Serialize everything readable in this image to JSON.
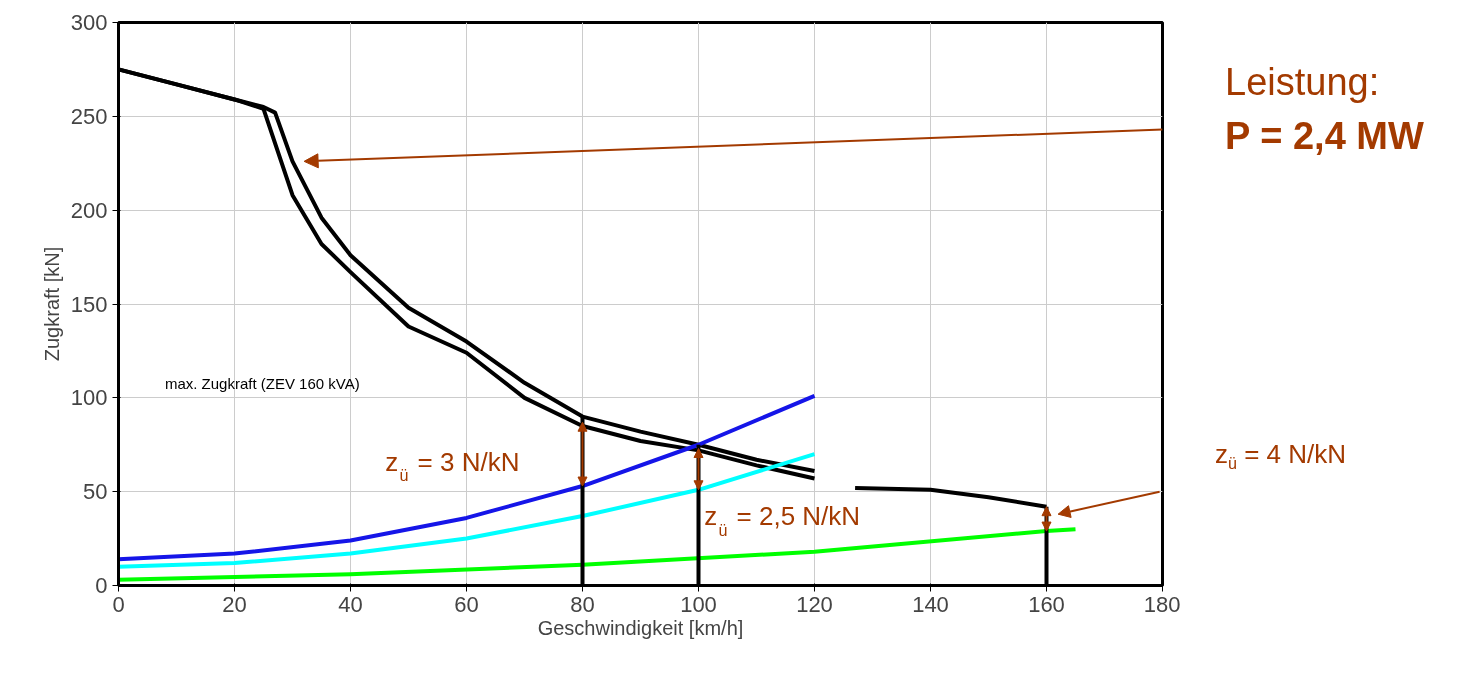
{
  "chart_data": {
    "type": "line",
    "xlabel": "Geschwindigkeit [km/h]",
    "ylabel": "Zugkraft [kN]",
    "xlim": [
      0,
      180
    ],
    "ylim": [
      0,
      300
    ],
    "xticks": [
      0,
      20,
      40,
      60,
      80,
      100,
      120,
      140,
      160,
      180
    ],
    "yticks": [
      0,
      50,
      100,
      150,
      200,
      250,
      300
    ],
    "grid": true,
    "series": [
      {
        "color": "#000000",
        "x": [
          0,
          10,
          20,
          25,
          27,
          30,
          35,
          40,
          50,
          60,
          70,
          80,
          90,
          100,
          110,
          120,
          121,
          127,
          140,
          150,
          160
        ],
        "values": [
          275,
          267,
          259,
          255,
          252,
          226,
          196,
          176,
          148,
          130,
          108,
          90,
          82,
          75,
          67,
          61,
          null,
          52,
          51,
          47,
          42
        ]
      },
      {
        "color": "#000000",
        "x": [
          0,
          10,
          20,
          25,
          30,
          35,
          40,
          50,
          60,
          70,
          80,
          90,
          100,
          110,
          120
        ],
        "values": [
          275,
          267,
          259,
          254,
          208,
          182,
          167,
          138,
          124,
          100,
          85,
          77,
          72,
          64,
          57
        ]
      },
      {
        "color": "#1515e8",
        "x": [
          0,
          20,
          40,
          60,
          80,
          100,
          120
        ],
        "values": [
          14,
          17,
          24,
          36,
          53,
          75,
          101
        ]
      },
      {
        "color": "#00ffff",
        "x": [
          0,
          20,
          40,
          60,
          80,
          100,
          120
        ],
        "values": [
          10,
          12,
          17,
          25,
          37,
          51,
          70
        ]
      },
      {
        "color": "#00ff00",
        "x": [
          0,
          40,
          80,
          120,
          160,
          165
        ],
        "values": [
          3,
          6,
          11,
          18,
          29,
          30
        ]
      }
    ],
    "ref_lines": [
      {
        "axis": "x",
        "value": 80,
        "color": "#000000"
      },
      {
        "axis": "x",
        "value": 100,
        "color": "#000000"
      },
      {
        "axis": "x",
        "value": 160,
        "color": "#000000"
      }
    ],
    "annotations": [
      "max. Zugkraft (ZEV 160 kVA)",
      "Leistung:",
      "P = 2,4 MW",
      {
        "text": "z$_{ü}$ = 3 N/kN",
        "x": 80,
        "y": 87
      },
      {
        "text": "z$_{ü}$ = 2,5 N/kN",
        "x": 100,
        "y": 73
      },
      "z$_{ü}$ = 4 N/kN"
    ]
  }
}
